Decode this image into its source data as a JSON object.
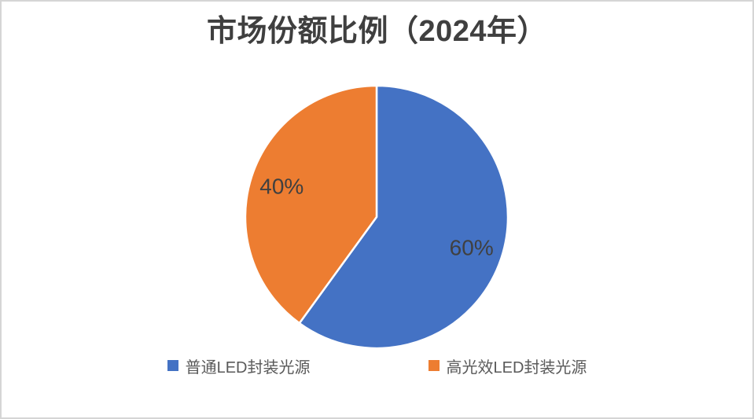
{
  "frame": {
    "border_color": "#d5d5d5",
    "background_color": "#ffffff"
  },
  "chart_data": {
    "type": "pie",
    "title": "市场份额比例（2024年）",
    "title_color": "#3f3f3f",
    "categories": [
      "普通LED封装光源",
      "高光效LED封装光源"
    ],
    "values": [
      60,
      40
    ],
    "slices": [
      {
        "label": "普通LED封装光源",
        "value": 60,
        "display": "60%",
        "color": "#4472C4"
      },
      {
        "label": "高光效LED封装光源",
        "value": 40,
        "display": "40%",
        "color": "#ED7D31"
      }
    ],
    "total": 100,
    "start_angle_deg": 0,
    "direction": "clockwise",
    "separator_color": "#ffffff",
    "label_color": "#404040",
    "legend_text_color": "#595959",
    "legend_position": "bottom"
  }
}
